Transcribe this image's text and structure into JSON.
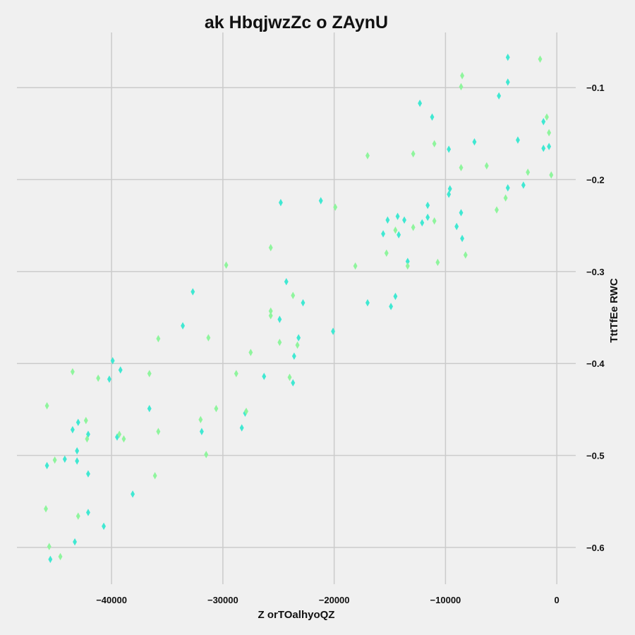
{
  "chart_data": {
    "type": "scatter",
    "title": "ak  HbqjwzZc o  ZAynU",
    "xlabel": "Z orTOalhyoQZ",
    "ylabel": "TttTfEe  RWC",
    "xlim": [
      -48500,
      1700
    ],
    "ylim": [
      -0.64,
      -0.04
    ],
    "xticks": [
      -40000,
      -30000,
      -20000,
      -10000,
      0
    ],
    "xtick_labels": [
      "−40000",
      "−30000",
      "−20000",
      "−10000",
      "0"
    ],
    "yticks": [
      -0.1,
      -0.2,
      -0.3,
      -0.4,
      -0.5,
      -0.6
    ],
    "ytick_labels": [
      "−0.1",
      "−0.2",
      "−0.3",
      "−0.4",
      "−0.5",
      "−0.6"
    ],
    "y_axis_side": "right",
    "grid": true,
    "marker": "thin-diamond",
    "series": [
      {
        "color": "#40e8d2",
        "points": [
          [
            -4400,
            -0.067
          ],
          [
            -4400,
            -0.094
          ],
          [
            -5200,
            -0.109
          ],
          [
            -12300,
            -0.117
          ],
          [
            -11200,
            -0.132
          ],
          [
            -9700,
            -0.167
          ],
          [
            -7400,
            -0.159
          ],
          [
            -3500,
            -0.157
          ],
          [
            -1200,
            -0.137
          ],
          [
            -1200,
            -0.166
          ],
          [
            -700,
            -0.164
          ],
          [
            -4400,
            -0.209
          ],
          [
            -3000,
            -0.206
          ],
          [
            -9600,
            -0.21
          ],
          [
            -9700,
            -0.216
          ],
          [
            -8600,
            -0.236
          ],
          [
            -9000,
            -0.251
          ],
          [
            -8500,
            -0.264
          ],
          [
            -11600,
            -0.228
          ],
          [
            -11600,
            -0.241
          ],
          [
            -12100,
            -0.247
          ],
          [
            -14300,
            -0.24
          ],
          [
            -13700,
            -0.244
          ],
          [
            -15200,
            -0.244
          ],
          [
            -15600,
            -0.259
          ],
          [
            -14200,
            -0.26
          ],
          [
            -13400,
            -0.289
          ],
          [
            -14500,
            -0.327
          ],
          [
            -14900,
            -0.338
          ],
          [
            -17000,
            -0.334
          ],
          [
            -20100,
            -0.365
          ],
          [
            -21200,
            -0.223
          ],
          [
            -24800,
            -0.225
          ],
          [
            -24300,
            -0.311
          ],
          [
            -22800,
            -0.334
          ],
          [
            -24900,
            -0.352
          ],
          [
            -23200,
            -0.372
          ],
          [
            -23600,
            -0.392
          ],
          [
            -23700,
            -0.421
          ],
          [
            -26300,
            -0.414
          ],
          [
            -28000,
            -0.454
          ],
          [
            -28300,
            -0.47
          ],
          [
            -32700,
            -0.322
          ],
          [
            -33600,
            -0.359
          ],
          [
            -36600,
            -0.449
          ],
          [
            -31900,
            -0.474
          ],
          [
            -39900,
            -0.397
          ],
          [
            -39200,
            -0.407
          ],
          [
            -40200,
            -0.417
          ],
          [
            -39500,
            -0.48
          ],
          [
            -38100,
            -0.542
          ],
          [
            -40700,
            -0.577
          ],
          [
            -42100,
            -0.477
          ],
          [
            -42100,
            -0.52
          ],
          [
            -42100,
            -0.562
          ],
          [
            -43000,
            -0.464
          ],
          [
            -43500,
            -0.472
          ],
          [
            -43100,
            -0.495
          ],
          [
            -43100,
            -0.506
          ],
          [
            -44200,
            -0.504
          ],
          [
            -45800,
            -0.511
          ],
          [
            -43300,
            -0.594
          ],
          [
            -45500,
            -0.613
          ]
        ]
      },
      {
        "color": "#8ff59d",
        "points": [
          [
            -1500,
            -0.069
          ],
          [
            -8500,
            -0.087
          ],
          [
            -8600,
            -0.099
          ],
          [
            -900,
            -0.132
          ],
          [
            -700,
            -0.149
          ],
          [
            -11000,
            -0.161
          ],
          [
            -12900,
            -0.172
          ],
          [
            -17000,
            -0.174
          ],
          [
            -8600,
            -0.187
          ],
          [
            -6300,
            -0.185
          ],
          [
            -2600,
            -0.192
          ],
          [
            -500,
            -0.195
          ],
          [
            -4600,
            -0.22
          ],
          [
            -5400,
            -0.233
          ],
          [
            -19900,
            -0.23
          ],
          [
            -11000,
            -0.245
          ],
          [
            -12900,
            -0.252
          ],
          [
            -14500,
            -0.255
          ],
          [
            -15300,
            -0.28
          ],
          [
            -8200,
            -0.282
          ],
          [
            -10700,
            -0.29
          ],
          [
            -13400,
            -0.294
          ],
          [
            -18100,
            -0.294
          ],
          [
            -25700,
            -0.274
          ],
          [
            -29700,
            -0.293
          ],
          [
            -23700,
            -0.326
          ],
          [
            -25700,
            -0.343
          ],
          [
            -25700,
            -0.348
          ],
          [
            -24900,
            -0.377
          ],
          [
            -23300,
            -0.38
          ],
          [
            -27500,
            -0.388
          ],
          [
            -31300,
            -0.372
          ],
          [
            -35800,
            -0.373
          ],
          [
            -28800,
            -0.411
          ],
          [
            -24000,
            -0.415
          ],
          [
            -36600,
            -0.411
          ],
          [
            -41200,
            -0.416
          ],
          [
            -43500,
            -0.409
          ],
          [
            -30600,
            -0.449
          ],
          [
            -27900,
            -0.452
          ],
          [
            -32000,
            -0.461
          ],
          [
            -35800,
            -0.474
          ],
          [
            -39300,
            -0.477
          ],
          [
            -38900,
            -0.482
          ],
          [
            -31500,
            -0.499
          ],
          [
            -36100,
            -0.522
          ],
          [
            -42300,
            -0.462
          ],
          [
            -42200,
            -0.482
          ],
          [
            -45800,
            -0.446
          ],
          [
            -45100,
            -0.505
          ],
          [
            -43000,
            -0.566
          ],
          [
            -45900,
            -0.558
          ],
          [
            -45600,
            -0.599
          ],
          [
            -44600,
            -0.61
          ]
        ]
      }
    ]
  }
}
